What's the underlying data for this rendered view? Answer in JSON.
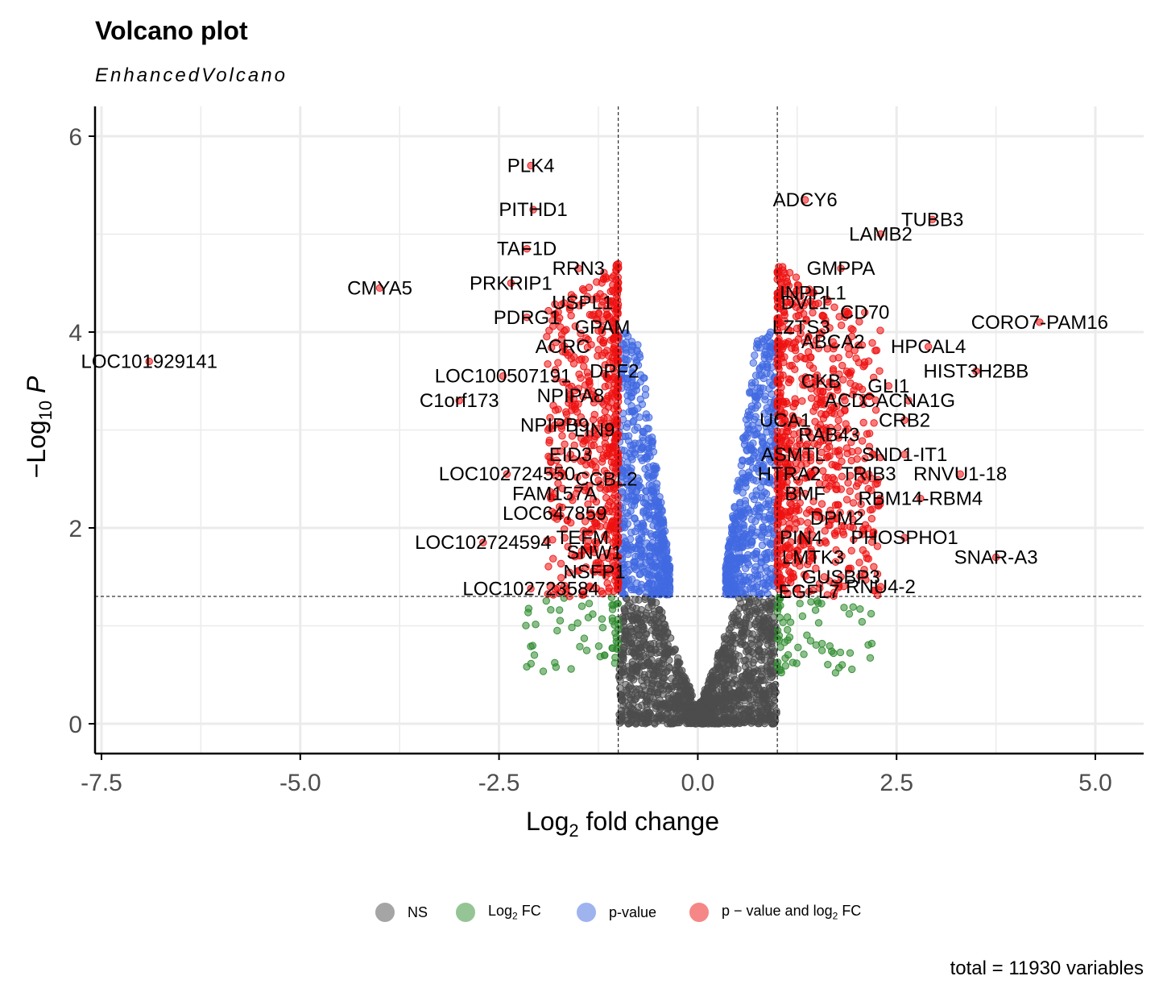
{
  "title": "Volcano plot",
  "subtitle": "EnhancedVolcano",
  "caption": "total = 11930 variables",
  "colors": {
    "ns": "#4d4d4d",
    "fc": "#2e8b2e",
    "p": "#4169e1",
    "both": "#ee1111",
    "grid": "#ebebeb"
  },
  "legend": [
    {
      "key": "ns",
      "label": "NS"
    },
    {
      "key": "fc",
      "label": "Log",
      "sub": "2",
      "tail": " FC"
    },
    {
      "key": "p",
      "label": "p-value"
    },
    {
      "key": "both",
      "label": "p − value and log",
      "sub": "2",
      "tail": " FC"
    }
  ],
  "chart_data": {
    "type": "scatter",
    "xlabel": "Log2 fold change",
    "ylabel": "−Log10 P",
    "xlim": [
      -7.6,
      5.25
    ],
    "ylim": [
      -0.25,
      6.3
    ],
    "xticks": [
      -7.5,
      -5.0,
      -2.5,
      0.0,
      2.5,
      5.0
    ],
    "xtick_labels": [
      "-7.5",
      "-5.0",
      "-2.5",
      "0.0",
      "2.5",
      "5.0"
    ],
    "yticks": [
      0,
      2,
      4,
      6
    ],
    "ytick_labels": [
      "0",
      "2",
      "4",
      "6"
    ],
    "fc_cutoff": 1.0,
    "p_cutoff_log10": 1.3,
    "total_variables": 11930,
    "labeled_genes": [
      {
        "gene": "PLK4",
        "x": -2.1,
        "y": 5.7
      },
      {
        "gene": "PITHD1",
        "x": -2.07,
        "y": 5.25
      },
      {
        "gene": "TAF1D",
        "x": -2.15,
        "y": 4.85
      },
      {
        "gene": "RRN3",
        "x": -1.5,
        "y": 4.65
      },
      {
        "gene": "PRKRIP1",
        "x": -2.35,
        "y": 4.5
      },
      {
        "gene": "CMYA5",
        "x": -4.0,
        "y": 4.45
      },
      {
        "gene": "USPL1",
        "x": -1.45,
        "y": 4.3
      },
      {
        "gene": "PDRG1",
        "x": -2.15,
        "y": 4.15
      },
      {
        "gene": "GPAM",
        "x": -1.2,
        "y": 4.05
      },
      {
        "gene": "ACRC",
        "x": -1.7,
        "y": 3.85
      },
      {
        "gene": "LOC101929141",
        "x": -6.9,
        "y": 3.7
      },
      {
        "gene": "DPF2",
        "x": -1.05,
        "y": 3.6
      },
      {
        "gene": "LOC100507191",
        "x": -2.45,
        "y": 3.55
      },
      {
        "gene": "NPIPA8",
        "x": -1.6,
        "y": 3.35
      },
      {
        "gene": "C1orf173",
        "x": -3.0,
        "y": 3.3
      },
      {
        "gene": "NPIPB9",
        "x": -1.8,
        "y": 3.05
      },
      {
        "gene": "LIN9",
        "x": -1.3,
        "y": 3.0
      },
      {
        "gene": "EID3",
        "x": -1.6,
        "y": 2.75
      },
      {
        "gene": "LOC102724550",
        "x": -2.4,
        "y": 2.55
      },
      {
        "gene": "CCBL2",
        "x": -1.15,
        "y": 2.5
      },
      {
        "gene": "FAM157A",
        "x": -1.8,
        "y": 2.35
      },
      {
        "gene": "LOC647859",
        "x": -1.8,
        "y": 2.15
      },
      {
        "gene": "TEFM",
        "x": -1.45,
        "y": 1.9
      },
      {
        "gene": "LOC102724594",
        "x": -2.7,
        "y": 1.85
      },
      {
        "gene": "SNW1",
        "x": -1.3,
        "y": 1.75
      },
      {
        "gene": "NSFP1",
        "x": -1.3,
        "y": 1.55
      },
      {
        "gene": "LOC102723584",
        "x": -2.1,
        "y": 1.38
      },
      {
        "gene": "ADCY6",
        "x": 1.35,
        "y": 5.35
      },
      {
        "gene": "TUBB3",
        "x": 2.95,
        "y": 5.15
      },
      {
        "gene": "LAMB2",
        "x": 2.3,
        "y": 5.0
      },
      {
        "gene": "GMPPA",
        "x": 1.8,
        "y": 4.65
      },
      {
        "gene": "INPPL1",
        "x": 1.45,
        "y": 4.4
      },
      {
        "gene": "DVL1",
        "x": 1.35,
        "y": 4.3
      },
      {
        "gene": "CD70",
        "x": 2.1,
        "y": 4.2
      },
      {
        "gene": "CORO7-PAM16",
        "x": 4.3,
        "y": 4.1
      },
      {
        "gene": "LZTS3",
        "x": 1.3,
        "y": 4.05
      },
      {
        "gene": "ABCA2",
        "x": 1.7,
        "y": 3.9
      },
      {
        "gene": "HPCAL4",
        "x": 2.9,
        "y": 3.85
      },
      {
        "gene": "HIST3H2BB",
        "x": 3.5,
        "y": 3.6
      },
      {
        "gene": "CKB",
        "x": 1.55,
        "y": 3.5
      },
      {
        "gene": "GLI1",
        "x": 2.4,
        "y": 3.45
      },
      {
        "gene": "CACNA1G",
        "x": 2.65,
        "y": 3.3
      },
      {
        "gene": "ACD",
        "x": 1.85,
        "y": 3.3
      },
      {
        "gene": "UCA1",
        "x": 1.1,
        "y": 3.1
      },
      {
        "gene": "CRB2",
        "x": 2.6,
        "y": 3.1
      },
      {
        "gene": "RAB43",
        "x": 1.65,
        "y": 2.95
      },
      {
        "gene": "ASMTL",
        "x": 1.2,
        "y": 2.75
      },
      {
        "gene": "SND1-IT1",
        "x": 2.6,
        "y": 2.75
      },
      {
        "gene": "TRIB3",
        "x": 2.15,
        "y": 2.55
      },
      {
        "gene": "HTRA2",
        "x": 1.15,
        "y": 2.55
      },
      {
        "gene": "RNVU1-18",
        "x": 3.3,
        "y": 2.55
      },
      {
        "gene": "BMF",
        "x": 1.35,
        "y": 2.35
      },
      {
        "gene": "RBM14-RBM4",
        "x": 2.8,
        "y": 2.3
      },
      {
        "gene": "DPM2",
        "x": 1.75,
        "y": 2.1
      },
      {
        "gene": "PIN4",
        "x": 1.3,
        "y": 1.9
      },
      {
        "gene": "PHOSPHO1",
        "x": 2.6,
        "y": 1.9
      },
      {
        "gene": "LMTK3",
        "x": 1.45,
        "y": 1.7
      },
      {
        "gene": "SNAR-A3",
        "x": 3.75,
        "y": 1.7
      },
      {
        "gene": "GUSBP3",
        "x": 1.8,
        "y": 1.5
      },
      {
        "gene": "RNU4-2",
        "x": 2.3,
        "y": 1.4
      },
      {
        "gene": "EGFL7",
        "x": 1.4,
        "y": 1.35
      }
    ]
  }
}
